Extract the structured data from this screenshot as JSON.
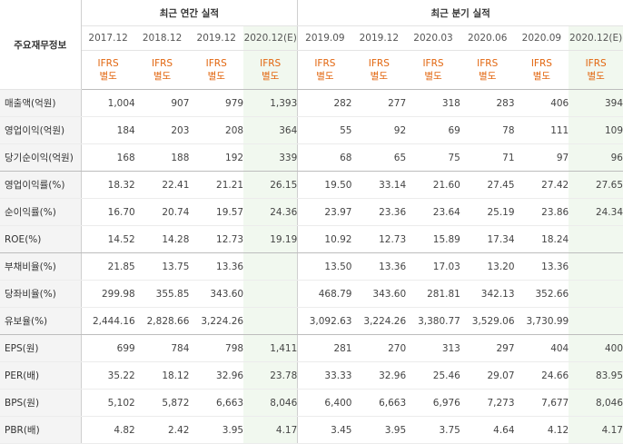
{
  "header": {
    "label_title": "주요재무정보",
    "annual_title": "최근 연간 실적",
    "quarter_title": "최근 분기 실적"
  },
  "periods": [
    {
      "date": "2017.12",
      "std1": "IFRS",
      "std2": "별도",
      "est": false
    },
    {
      "date": "2018.12",
      "std1": "IFRS",
      "std2": "별도",
      "est": false
    },
    {
      "date": "2019.12",
      "std1": "IFRS",
      "std2": "별도",
      "est": false
    },
    {
      "date": "2020.12(E)",
      "std1": "IFRS",
      "std2": "별도",
      "est": true
    },
    {
      "date": "2019.09",
      "std1": "IFRS",
      "std2": "별도",
      "est": false
    },
    {
      "date": "2019.12",
      "std1": "IFRS",
      "std2": "별도",
      "est": false
    },
    {
      "date": "2020.03",
      "std1": "IFRS",
      "std2": "별도",
      "est": false
    },
    {
      "date": "2020.06",
      "std1": "IFRS",
      "std2": "별도",
      "est": false
    },
    {
      "date": "2020.09",
      "std1": "IFRS",
      "std2": "별도",
      "est": false
    },
    {
      "date": "2020.12(E)",
      "std1": "IFRS",
      "std2": "별도",
      "est": true
    }
  ],
  "rows": [
    {
      "label": "매출액(억원)",
      "values": [
        "1,004",
        "907",
        "979",
        "1,393",
        "282",
        "277",
        "318",
        "283",
        "406",
        "394"
      ]
    },
    {
      "label": "영업이익(억원)",
      "values": [
        "184",
        "203",
        "208",
        "364",
        "55",
        "92",
        "69",
        "78",
        "111",
        "109"
      ]
    },
    {
      "label": "당기순이익(억원)",
      "values": [
        "168",
        "188",
        "192",
        "339",
        "68",
        "65",
        "75",
        "71",
        "97",
        "96"
      ]
    },
    {
      "label": "영업이익률(%)",
      "values": [
        "18.32",
        "22.41",
        "21.21",
        "26.15",
        "19.50",
        "33.14",
        "21.60",
        "27.45",
        "27.42",
        "27.65"
      ]
    },
    {
      "label": "순이익률(%)",
      "values": [
        "16.70",
        "20.74",
        "19.57",
        "24.36",
        "23.97",
        "23.36",
        "23.64",
        "25.19",
        "23.86",
        "24.34"
      ]
    },
    {
      "label": "ROE(%)",
      "values": [
        "14.52",
        "14.28",
        "12.73",
        "19.19",
        "10.92",
        "12.73",
        "15.89",
        "17.34",
        "18.24",
        ""
      ]
    },
    {
      "label": "부채비율(%)",
      "values": [
        "21.85",
        "13.75",
        "13.36",
        "",
        "13.50",
        "13.36",
        "17.03",
        "13.20",
        "13.36",
        ""
      ]
    },
    {
      "label": "당좌비율(%)",
      "values": [
        "299.98",
        "355.85",
        "343.60",
        "",
        "468.79",
        "343.60",
        "281.81",
        "342.13",
        "352.66",
        ""
      ]
    },
    {
      "label": "유보율(%)",
      "values": [
        "2,444.16",
        "2,828.66",
        "3,224.26",
        "",
        "3,092.63",
        "3,224.26",
        "3,380.77",
        "3,529.06",
        "3,730.99",
        ""
      ]
    },
    {
      "label": "EPS(원)",
      "values": [
        "699",
        "784",
        "798",
        "1,411",
        "281",
        "270",
        "313",
        "297",
        "404",
        "400"
      ]
    },
    {
      "label": "PER(배)",
      "values": [
        "35.22",
        "18.12",
        "32.96",
        "23.78",
        "33.33",
        "32.96",
        "25.46",
        "29.07",
        "24.66",
        "83.95"
      ]
    },
    {
      "label": "BPS(원)",
      "values": [
        "5,102",
        "5,872",
        "6,663",
        "8,046",
        "6,400",
        "6,663",
        "6,976",
        "7,273",
        "7,677",
        "8,046"
      ]
    },
    {
      "label": "PBR(배)",
      "values": [
        "4.82",
        "2.42",
        "3.95",
        "4.17",
        "3.45",
        "3.95",
        "3.75",
        "4.64",
        "4.12",
        "4.17"
      ]
    }
  ]
}
